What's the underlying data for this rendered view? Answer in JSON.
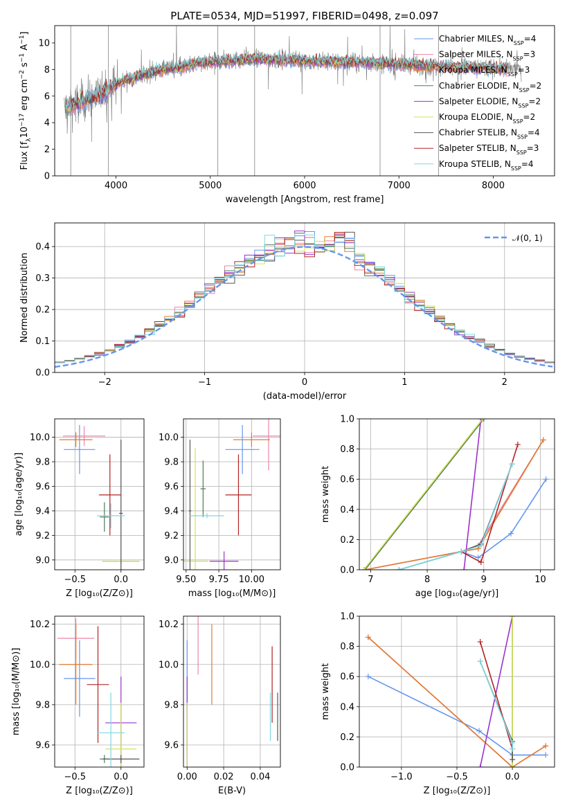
{
  "figure": {
    "title": "PLATE=0534, MJD=51997, FIBERID=0498, z=0.097",
    "series": [
      {
        "name": "Chabrier MILES, N_SSP=4",
        "color": "#6495ed"
      },
      {
        "name": "Salpeter MILES, N_SSP=3",
        "color": "#ee82a8"
      },
      {
        "name": "Kroupa MILES, N_SSP=3",
        "color": "#e07a30"
      },
      {
        "name": "Chabrier ELODIE, N_SSP=2",
        "color": "#4d7a5a"
      },
      {
        "name": "Salpeter ELODIE, N_SSP=2",
        "color": "#9932cc"
      },
      {
        "name": "Kroupa ELODIE, N_SSP=2",
        "color": "#d4e157"
      },
      {
        "name": "Chabrier STELIB, N_SSP=4",
        "color": "#555555"
      },
      {
        "name": "Salpeter STELIB, N_SSP=3",
        "color": "#b22222"
      },
      {
        "name": "Kroupa STELIB, N_SSP=4",
        "color": "#7fd8e0"
      }
    ]
  },
  "chart_data": [
    {
      "id": "spectrum",
      "type": "line",
      "xlabel": "wavelength [Angstrom, rest frame]",
      "ylabel": "Flux [f_λ10^-17 erg cm^-2 s^-1 A^-1]",
      "xlim": [
        3350,
        8650
      ],
      "ylim": [
        0,
        11.3
      ],
      "xticks": [
        4000,
        5000,
        6000,
        7000,
        8000
      ],
      "yticks": [
        0,
        2,
        4,
        6,
        8,
        10
      ],
      "grid": false,
      "legend": "top-right",
      "data_x_range": [
        3450,
        8300
      ],
      "continuum": [
        [
          3450,
          5.1
        ],
        [
          3550,
          5.3
        ],
        [
          3700,
          5.8
        ],
        [
          3850,
          6.1
        ],
        [
          3950,
          6.7
        ],
        [
          4100,
          7.2
        ],
        [
          4300,
          7.6
        ],
        [
          4500,
          8.0
        ],
        [
          4700,
          8.2
        ],
        [
          4900,
          8.5
        ],
        [
          5100,
          8.6
        ],
        [
          5300,
          8.7
        ],
        [
          5500,
          8.8
        ],
        [
          5800,
          8.7
        ],
        [
          6100,
          8.6
        ],
        [
          6400,
          8.6
        ],
        [
          6700,
          8.5
        ],
        [
          7000,
          8.4
        ],
        [
          7300,
          8.3
        ],
        [
          7600,
          8.2
        ],
        [
          8000,
          8.1
        ],
        [
          8300,
          8.0
        ]
      ],
      "spikes": [
        3520,
        3920,
        5080,
        5470,
        6800,
        7420
      ]
    },
    {
      "id": "residuals",
      "type": "area",
      "xlabel": "(data-model)/error",
      "ylabel": "Normed distribution",
      "xlim": [
        -2.5,
        2.5
      ],
      "ylim": [
        0,
        0.475
      ],
      "xticks": [
        -2,
        -1,
        0,
        1,
        2
      ],
      "yticks": [
        0,
        0.1,
        0.2,
        0.3,
        0.4
      ],
      "grid": true,
      "legend": "top-right",
      "reference_label": "𝒩(0, 1)",
      "reference": {
        "mean": 0,
        "sigma": 1
      },
      "bin_width": 0.1
    },
    {
      "id": "age_vs_Z",
      "type": "scatter",
      "xlabel": "Z [log10(Z/Z⊙)]",
      "ylabel": "age [log10(age/yr)]",
      "xlim": [
        -0.72,
        0.25
      ],
      "ylim": [
        8.92,
        10.15
      ],
      "xticks": [
        -0.5,
        0.0
      ],
      "yticks": [
        9.0,
        9.2,
        9.4,
        9.6,
        9.8,
        10.0
      ],
      "points": [
        {
          "s": 0,
          "x": -0.45,
          "y": 9.9,
          "xe": 0.17,
          "ye": 0.2
        },
        {
          "s": 1,
          "x": -0.4,
          "y": 10.01,
          "xe": 0.23,
          "ye": 0.08
        },
        {
          "s": 2,
          "x": -0.49,
          "y": 9.98,
          "xe": 0.18,
          "ye": 0.06
        },
        {
          "s": 3,
          "x": -0.18,
          "y": 9.35,
          "xe": 0.05,
          "ye": 0.12
        },
        {
          "s": 4,
          "x": 0.0,
          "y": 8.99,
          "xe": 0.2,
          "ye": 0.02
        },
        {
          "s": 5,
          "x": 0.0,
          "y": 8.99,
          "xe": 0.2,
          "ye": 0.02
        },
        {
          "s": 6,
          "x": 0.0,
          "y": 9.38,
          "xe": 0.02,
          "ye": 0.6
        },
        {
          "s": 7,
          "x": -0.12,
          "y": 9.53,
          "xe": 0.12,
          "ye": 0.33
        },
        {
          "s": 8,
          "x": -0.11,
          "y": 9.36,
          "xe": 0.15,
          "ye": 0.1
        }
      ]
    },
    {
      "id": "age_vs_mass",
      "type": "scatter",
      "xlabel": "mass [log10(M/M⊙)]",
      "ylabel": "",
      "xlim": [
        9.48,
        10.22
      ],
      "ylim": [
        8.92,
        10.15
      ],
      "xticks": [
        9.5,
        9.75,
        10.0
      ],
      "yticks": [
        9.0,
        9.2,
        9.4,
        9.6,
        9.8,
        10.0
      ],
      "points": [
        {
          "s": 0,
          "x": 9.93,
          "y": 9.9,
          "xe": 0.13,
          "ye": 0.2
        },
        {
          "s": 1,
          "x": 10.13,
          "y": 10.01,
          "xe": 0.12,
          "ye": 0.28
        },
        {
          "s": 2,
          "x": 10.0,
          "y": 9.98,
          "xe": 0.14,
          "ye": 0.06
        },
        {
          "s": 3,
          "x": 9.63,
          "y": 9.58,
          "xe": 0.02,
          "ye": 0.23
        },
        {
          "s": 4,
          "x": 9.79,
          "y": 8.99,
          "xe": 0.11,
          "ye": 0.08
        },
        {
          "s": 5,
          "x": 9.57,
          "y": 8.99,
          "xe": 0.1,
          "ye": 0.92
        },
        {
          "s": 6,
          "x": 9.53,
          "y": 9.4,
          "xe": 0.01,
          "ye": 0.58
        },
        {
          "s": 7,
          "x": 9.9,
          "y": 9.53,
          "xe": 0.1,
          "ye": 0.33
        },
        {
          "s": 8,
          "x": 9.66,
          "y": 9.36,
          "xe": 0.13,
          "ye": 0.02
        }
      ]
    },
    {
      "id": "weight_vs_age",
      "type": "line",
      "xlabel": "age [log10(age/yr)]",
      "ylabel": "mass weight",
      "xlim": [
        6.8,
        10.25
      ],
      "ylim": [
        0,
        1
      ],
      "xticks": [
        7,
        8,
        9,
        10
      ],
      "yticks": [
        0.0,
        0.2,
        0.4,
        0.6,
        0.8,
        1.0
      ],
      "grid": true,
      "series": [
        {
          "s": 0,
          "x": [
            7.5,
            8.6,
            8.9,
            9.48,
            10.1
          ],
          "y": [
            0.0,
            0.12,
            0.08,
            0.24,
            0.6
          ]
        },
        {
          "s": 1,
          "x": [
            6.9,
            8.6,
            8.9,
            10.05
          ],
          "y": [
            0.0,
            0.12,
            0.16,
            0.86
          ]
        },
        {
          "s": 2,
          "x": [
            6.9,
            8.6,
            8.9,
            10.05
          ],
          "y": [
            0.0,
            0.12,
            0.14,
            0.86
          ]
        },
        {
          "s": 3,
          "x": [
            6.9,
            9.0
          ],
          "y": [
            0.0,
            1.0
          ]
        },
        {
          "s": 4,
          "x": [
            8.65,
            8.95
          ],
          "y": [
            0.0,
            1.0
          ]
        },
        {
          "s": 5,
          "x": [
            6.88,
            8.98
          ],
          "y": [
            0.0,
            1.0
          ]
        },
        {
          "s": 6,
          "x": [
            7.5,
            8.6,
            8.95,
            9.5
          ],
          "y": [
            0.0,
            0.12,
            0.17,
            0.7
          ]
        },
        {
          "s": 7,
          "x": [
            8.6,
            8.95,
            9.6
          ],
          "y": [
            0.12,
            0.05,
            0.83
          ]
        },
        {
          "s": 8,
          "x": [
            7.5,
            8.6,
            8.95,
            9.5
          ],
          "y": [
            0.0,
            0.12,
            0.16,
            0.7
          ]
        }
      ]
    },
    {
      "id": "mass_vs_Z",
      "type": "scatter",
      "xlabel": "Z [log10(Z/Z⊙)]",
      "ylabel": "mass [log10(M/M⊙)]",
      "xlim": [
        -0.72,
        0.25
      ],
      "ylim": [
        9.49,
        10.24
      ],
      "xticks": [
        -0.5,
        0.0
      ],
      "yticks": [
        9.6,
        9.8,
        10.0,
        10.2
      ],
      "points": [
        {
          "s": 0,
          "x": -0.45,
          "y": 9.93,
          "xe": 0.17,
          "ye": 0.19
        },
        {
          "s": 1,
          "x": -0.49,
          "y": 10.13,
          "xe": 0.2,
          "ye": 0.1
        },
        {
          "s": 2,
          "x": -0.49,
          "y": 10.0,
          "xe": 0.18,
          "ye": 0.2
        },
        {
          "s": 3,
          "x": -0.18,
          "y": 9.53,
          "xe": 0.05,
          "ye": 0.02
        },
        {
          "s": 4,
          "x": 0.0,
          "y": 9.71,
          "xe": 0.17,
          "ye": 0.23
        },
        {
          "s": 5,
          "x": 0.0,
          "y": 9.58,
          "xe": 0.17,
          "ye": 0.23
        },
        {
          "s": 6,
          "x": 0.0,
          "y": 9.53,
          "xe": 0.2,
          "ye": 0.02
        },
        {
          "s": 7,
          "x": -0.25,
          "y": 9.9,
          "xe": 0.12,
          "ye": 0.29
        },
        {
          "s": 8,
          "x": -0.11,
          "y": 9.66,
          "xe": 0.15,
          "ye": 0.2
        }
      ]
    },
    {
      "id": "mass_vs_ebv",
      "type": "scatter",
      "xlabel": "E(B-V)",
      "ylabel": "",
      "xlim": [
        -0.002,
        0.051
      ],
      "ylim": [
        9.49,
        10.24
      ],
      "xticks": [
        0.0,
        0.02,
        0.04
      ],
      "yticks": [
        9.6,
        9.8,
        10.0,
        10.2
      ],
      "points": [
        {
          "s": 0,
          "x": 0.0,
          "y": 9.93,
          "xe": 0.0,
          "ye": 0.19
        },
        {
          "s": 1,
          "x": 0.006,
          "y": 10.13,
          "xe": 0.0,
          "ye": 0.18
        },
        {
          "s": 2,
          "x": 0.0135,
          "y": 10.0,
          "xe": 0.0,
          "ye": 0.2
        },
        {
          "s": 3,
          "x": 0.0,
          "y": 9.68,
          "xe": 0.0,
          "ye": 0.13
        },
        {
          "s": 4,
          "x": 0.0,
          "y": 9.71,
          "xe": 0.0,
          "ye": 0.23
        },
        {
          "s": 5,
          "x": 0.0,
          "y": 9.58,
          "xe": 0.0,
          "ye": 0.23
        },
        {
          "s": 6,
          "x": 0.0495,
          "y": 9.74,
          "xe": 0.0,
          "ye": 0.12
        },
        {
          "s": 7,
          "x": 0.0465,
          "y": 9.9,
          "xe": 0.0,
          "ye": 0.19
        },
        {
          "s": 8,
          "x": 0.0455,
          "y": 9.74,
          "xe": 0.0,
          "ye": 0.12
        }
      ]
    },
    {
      "id": "weight_vs_Z",
      "type": "line",
      "xlabel": "Z [log10(Z/Z⊙)]",
      "ylabel": "mass weight",
      "xlim": [
        -1.38,
        0.38
      ],
      "ylim": [
        0,
        1
      ],
      "xticks": [
        -1.0,
        -0.5,
        0.0
      ],
      "yticks": [
        0.0,
        0.2,
        0.4,
        0.6,
        0.8,
        1.0
      ],
      "grid": true,
      "series": [
        {
          "s": 0,
          "x": [
            -1.3,
            -0.3,
            0.0,
            0.3
          ],
          "y": [
            0.6,
            0.24,
            0.08,
            0.08
          ]
        },
        {
          "s": 1,
          "x": [
            -1.3,
            0.0,
            0.3
          ],
          "y": [
            0.86,
            0.0,
            0.14
          ]
        },
        {
          "s": 2,
          "x": [
            -1.3,
            0.0,
            0.3
          ],
          "y": [
            0.86,
            0.0,
            0.14
          ]
        },
        {
          "s": 3,
          "x": [
            0.0,
            0.0
          ],
          "y": [
            0.0,
            1.0
          ]
        },
        {
          "s": 4,
          "x": [
            -0.29,
            0.0
          ],
          "y": [
            0.0,
            1.0
          ]
        },
        {
          "s": 5,
          "x": [
            0.0,
            0.0
          ],
          "y": [
            0.0,
            1.0
          ]
        },
        {
          "s": 6,
          "x": [
            -0.29,
            0.0,
            0.0
          ],
          "y": [
            0.7,
            0.17,
            0.05
          ]
        },
        {
          "s": 7,
          "x": [
            -0.29,
            0.0
          ],
          "y": [
            0.83,
            0.12
          ]
        },
        {
          "s": 8,
          "x": [
            -0.29,
            0.0,
            0.0
          ],
          "y": [
            0.7,
            0.16,
            0.12
          ]
        }
      ]
    }
  ]
}
